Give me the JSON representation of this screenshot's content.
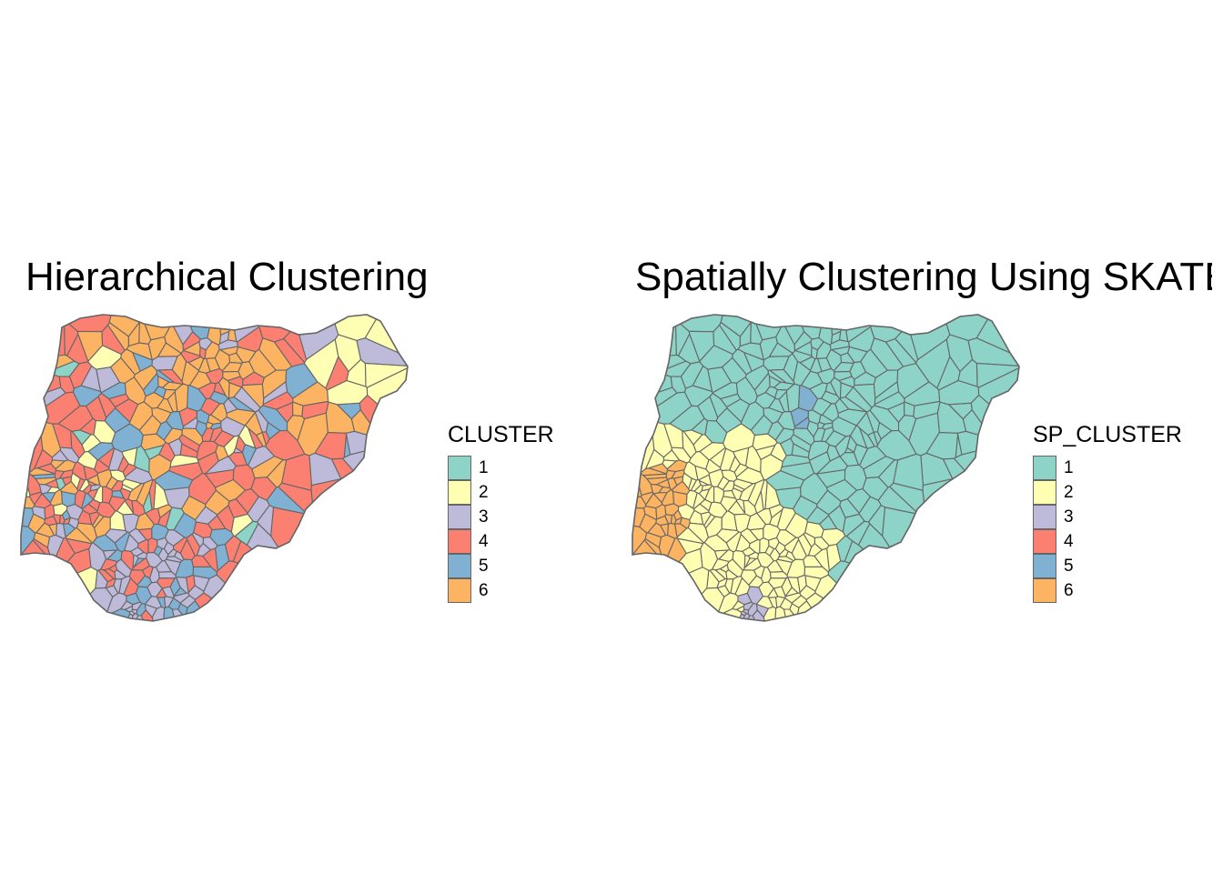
{
  "panels": [
    {
      "title": "Hierarchical Clustering",
      "legend_title": "CLUSTER",
      "scheme": "mixed"
    },
    {
      "title": "Spatially Clustering Using SKATER",
      "legend_title": "SP_CLUSTER",
      "scheme": "regional"
    }
  ],
  "legend_items": [
    {
      "label": "1",
      "color": "#8DD3C7"
    },
    {
      "label": "2",
      "color": "#FFFFB3"
    },
    {
      "label": "3",
      "color": "#BEBADA"
    },
    {
      "label": "4",
      "color": "#FB8072"
    },
    {
      "label": "5",
      "color": "#80B1D3"
    },
    {
      "label": "6",
      "color": "#FDB462"
    }
  ],
  "border_color": "#666666"
}
